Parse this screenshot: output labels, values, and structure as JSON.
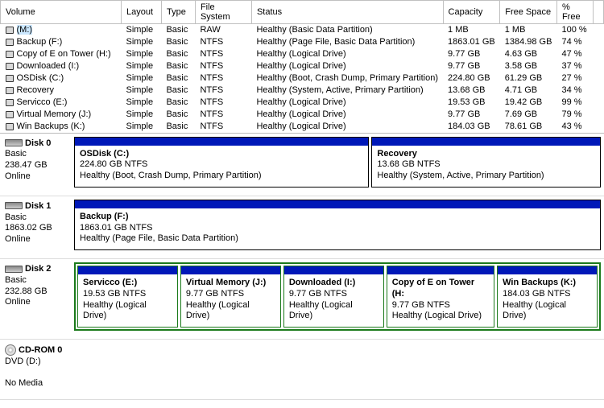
{
  "columns": [
    "Volume",
    "Layout",
    "Type",
    "File System",
    "Status",
    "Capacity",
    "Free Space",
    "% Free"
  ],
  "volumes": [
    {
      "name": "(M:)",
      "layout": "Simple",
      "type": "Basic",
      "fs": "RAW",
      "status": "Healthy (Basic Data Partition)",
      "cap": "1 MB",
      "free": "1 MB",
      "pct": "100 %",
      "selected": true
    },
    {
      "name": "Backup (F:)",
      "layout": "Simple",
      "type": "Basic",
      "fs": "NTFS",
      "status": "Healthy (Page File, Basic Data Partition)",
      "cap": "1863.01 GB",
      "free": "1384.98 GB",
      "pct": "74 %"
    },
    {
      "name": "Copy of E on Tower (H:)",
      "layout": "Simple",
      "type": "Basic",
      "fs": "NTFS",
      "status": "Healthy (Logical Drive)",
      "cap": "9.77 GB",
      "free": "4.63 GB",
      "pct": "47 %"
    },
    {
      "name": "Downloaded (I:)",
      "layout": "Simple",
      "type": "Basic",
      "fs": "NTFS",
      "status": "Healthy (Logical Drive)",
      "cap": "9.77 GB",
      "free": "3.58 GB",
      "pct": "37 %"
    },
    {
      "name": "OSDisk (C:)",
      "layout": "Simple",
      "type": "Basic",
      "fs": "NTFS",
      "status": "Healthy (Boot, Crash Dump, Primary Partition)",
      "cap": "224.80 GB",
      "free": "61.29 GB",
      "pct": "27 %"
    },
    {
      "name": "Recovery",
      "layout": "Simple",
      "type": "Basic",
      "fs": "NTFS",
      "status": "Healthy (System, Active, Primary Partition)",
      "cap": "13.68 GB",
      "free": "4.71 GB",
      "pct": "34 %"
    },
    {
      "name": "Servicco (E:)",
      "layout": "Simple",
      "type": "Basic",
      "fs": "NTFS",
      "status": "Healthy (Logical Drive)",
      "cap": "19.53 GB",
      "free": "19.42 GB",
      "pct": "99 %"
    },
    {
      "name": "Virtual Memory (J:)",
      "layout": "Simple",
      "type": "Basic",
      "fs": "NTFS",
      "status": "Healthy (Logical Drive)",
      "cap": "9.77 GB",
      "free": "7.69 GB",
      "pct": "79 %"
    },
    {
      "name": "Win Backups (K:)",
      "layout": "Simple",
      "type": "Basic",
      "fs": "NTFS",
      "status": "Healthy (Logical Drive)",
      "cap": "184.03 GB",
      "free": "78.61 GB",
      "pct": "43 %"
    }
  ],
  "disks": [
    {
      "id": "disk0",
      "icon": "hd",
      "title": "Disk 0",
      "sub": "Basic",
      "size": "238.47 GB",
      "state": "Online",
      "green": false,
      "head_color": "#0018b8",
      "parts": [
        {
          "name": "OSDisk  (C:)",
          "cap": "224.80 GB NTFS",
          "status": "Healthy (Boot, Crash Dump, Primary Partition)",
          "grow": 6
        },
        {
          "name": "Recovery",
          "cap": "13.68 GB NTFS",
          "status": "Healthy (System, Active, Primary Partition)",
          "grow": 3
        }
      ]
    },
    {
      "id": "disk1",
      "icon": "hd",
      "title": "Disk 1",
      "sub": "Basic",
      "size": "1863.02 GB",
      "state": "Online",
      "green": false,
      "head_color": "#0018b8",
      "parts": [
        {
          "name": "Backup  (F:)",
          "cap": "1863.01 GB NTFS",
          "status": "Healthy (Page File, Basic Data Partition)",
          "grow": 1
        }
      ]
    },
    {
      "id": "disk2",
      "icon": "hd",
      "title": "Disk 2",
      "sub": "Basic",
      "size": "232.88 GB",
      "state": "Online",
      "green": true,
      "head_color": "#0018b8",
      "parts": [
        {
          "name": "Servicco  (E:)",
          "cap": "19.53 GB NTFS",
          "status": "Healthy (Logical Drive)",
          "grow": 1
        },
        {
          "name": "Virtual Memory  (J:)",
          "cap": "9.77 GB NTFS",
          "status": "Healthy (Logical Drive)",
          "grow": 1
        },
        {
          "name": "Downloaded  (I:)",
          "cap": "9.77 GB NTFS",
          "status": "Healthy (Logical Drive)",
          "grow": 1
        },
        {
          "name": "Copy of E on Tower  (H:",
          "cap": "9.77 GB NTFS",
          "status": "Healthy (Logical Drive)",
          "grow": 1
        },
        {
          "name": "Win Backups  (K:)",
          "cap": "184.03 GB NTFS",
          "status": "Healthy (Logical Drive)",
          "grow": 1
        }
      ]
    },
    {
      "id": "cdrom0",
      "icon": "cd",
      "title": "CD-ROM 0",
      "sub": "DVD (D:)",
      "size": "",
      "state": "No Media",
      "green": false,
      "head_color": "",
      "parts": []
    }
  ]
}
